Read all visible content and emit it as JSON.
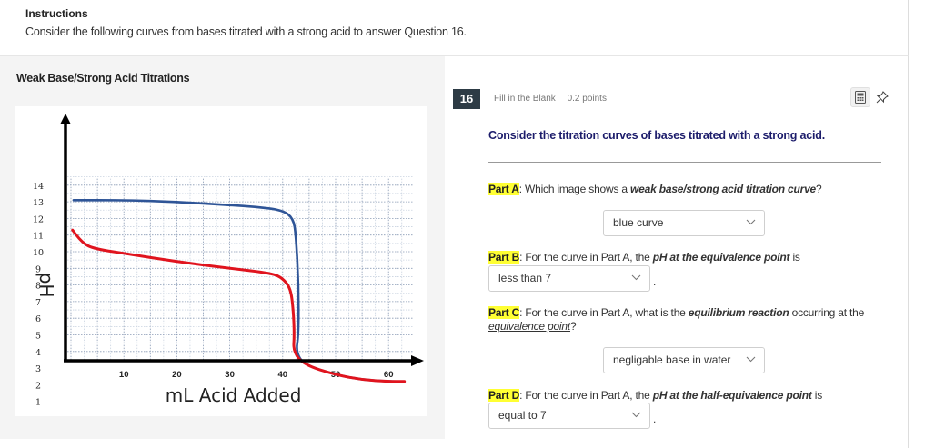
{
  "instructions": {
    "title": "Instructions",
    "text": "Consider the following curves from bases titrated with a strong acid to answer Question 16."
  },
  "left_panel": {
    "heading": "Weak Base/Strong Acid Titrations"
  },
  "chart_data": {
    "type": "line",
    "title": "Weak Base/Strong Acid Titrations",
    "xlabel": "mL Acid Added",
    "ylabel": "pH",
    "x_ticks": [
      10,
      20,
      30,
      40,
      50,
      60
    ],
    "y_ticks": [
      1,
      2,
      3,
      4,
      5,
      6,
      7,
      8,
      9,
      10,
      11,
      12,
      13,
      14
    ],
    "xlim": [
      0,
      65
    ],
    "ylim": [
      0,
      14.5
    ],
    "grid": true,
    "legend": null,
    "series": [
      {
        "name": "blue curve",
        "color": "#2f5597",
        "x": [
          0.5,
          10,
          20,
          30,
          35,
          40,
          42,
          42.5,
          43,
          43,
          42.5,
          44,
          50,
          55,
          60,
          63
        ],
        "y": [
          13.1,
          13.1,
          13.0,
          12.8,
          12.7,
          12.5,
          12.0,
          11.0,
          8.0,
          5.0,
          4.0,
          3.2,
          2.6,
          2.3,
          2.2,
          2.2
        ]
      },
      {
        "name": "red curve",
        "color": "#e0141e",
        "x": [
          0.3,
          2,
          4,
          10,
          20,
          30,
          38,
          40,
          41.5,
          42,
          42.2,
          42,
          44,
          50,
          55,
          60,
          63
        ],
        "y": [
          11.3,
          10.6,
          10.2,
          9.9,
          9.4,
          9.0,
          8.7,
          8.4,
          7.8,
          6.5,
          5.0,
          4.0,
          3.2,
          2.6,
          2.3,
          2.2,
          2.2
        ]
      }
    ]
  },
  "question": {
    "number": "16",
    "type": "Fill in the Blank",
    "points": "0.2 points",
    "icons": [
      "calculator-icon",
      "pin-icon"
    ],
    "prompt": "Consider the titration curves of bases titrated with a strong acid.",
    "parts": [
      {
        "label": "Part A",
        "text_before": ": Which image shows a ",
        "emphasis": "weak base/strong acid titration curve",
        "text_after": "?",
        "selected": "blue curve"
      },
      {
        "label": "Part B",
        "text_before": ": For the curve in Part A, the ",
        "emphasis": "pH at the equivalence point",
        "text_after": " is",
        "selected": "less than 7",
        "suffix": "."
      },
      {
        "label": "Part C",
        "text_before": ": For the curve in Part A, what is the ",
        "emphasis": "equilibrium reaction",
        "text_after": " occurring at the",
        "underlined": "equivalence point",
        "text_end": "?",
        "selected": "negligable base in water"
      },
      {
        "label": "Part D",
        "text_before": ": For the curve in Part A, the ",
        "emphasis": "pH at the half-equivalence point",
        "text_after": " is",
        "selected": "equal to 7",
        "suffix": "."
      }
    ]
  }
}
